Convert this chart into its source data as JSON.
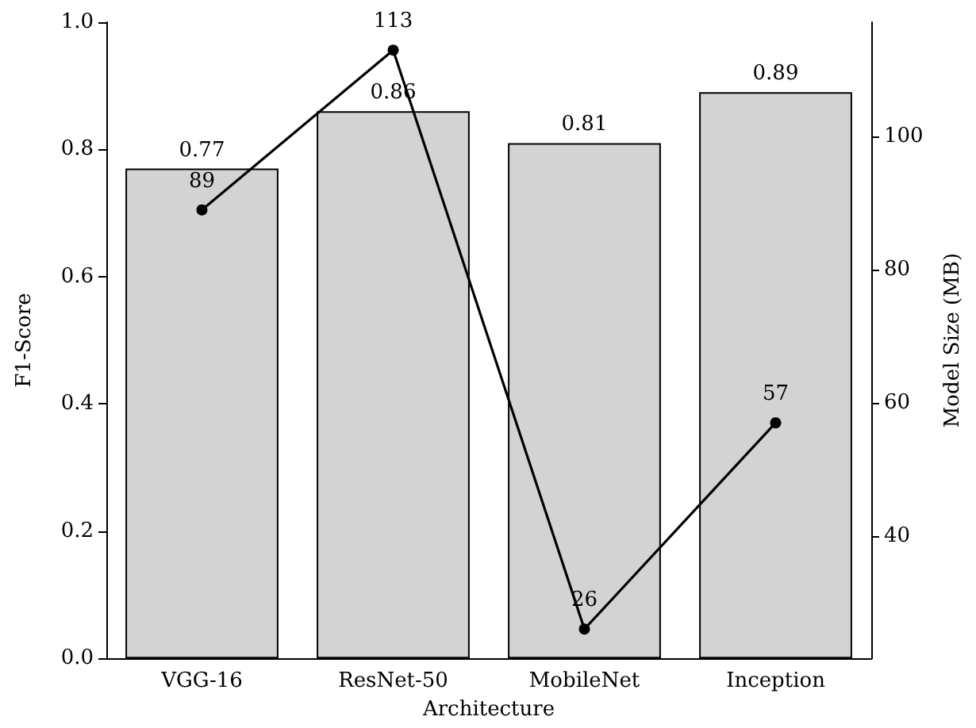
{
  "chart_data": {
    "type": "bar",
    "xlabel": "Architecture",
    "ylabel": "F1-Score",
    "y2label": "Model Size (MB)",
    "categories": [
      "VGG-16",
      "ResNet-50",
      "MobileNet",
      "Inception"
    ],
    "series": [
      {
        "color": "#d3d3d3",
        "values": [
          0.77,
          0.86,
          0.81,
          0.89
        ]
      },
      {
        "type": "line",
        "axis": "y2",
        "color": "#000000",
        "values": [
          89,
          113,
          26,
          57
        ]
      }
    ],
    "ylim": [
      0,
      1
    ],
    "yticks": [
      {
        "value": 0,
        "label": "0.0"
      },
      0.2,
      0.4,
      0.6,
      0.8,
      {
        "value": 1,
        "label": "1.0"
      }
    ],
    "y2lim": [
      21.6,
      117.2
    ],
    "y2ticks": [
      40,
      60,
      80,
      100
    ],
    "data_labels": true,
    "marker": "circle",
    "line_style": "solid",
    "grid": false
  }
}
